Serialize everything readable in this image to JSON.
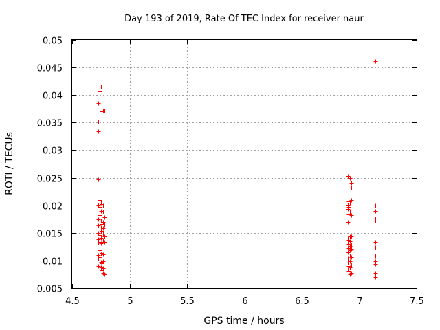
{
  "chart_data": {
    "type": "scatter",
    "title": "Day 193 of 2019, Rate Of TEC Index for receiver naur",
    "xlabel": "GPS time / hours",
    "ylabel": "ROTI / TECUs",
    "xlim": [
      4.5,
      7.5
    ],
    "ylim": [
      0.005,
      0.05
    ],
    "xticks": [
      4.5,
      5,
      5.5,
      6,
      6.5,
      7,
      7.5
    ],
    "xtick_labels": [
      "4.5",
      "5",
      "5.5",
      "6",
      "6.5",
      "7",
      "7.5"
    ],
    "yticks": [
      0.005,
      0.01,
      0.015,
      0.02,
      0.025,
      0.03,
      0.035,
      0.04,
      0.045,
      0.05
    ],
    "ytick_labels": [
      "0.005",
      "0.01",
      "0.015",
      "0.02",
      "0.025",
      "0.03",
      "0.035",
      "0.04",
      "0.045",
      "0.05"
    ],
    "grid": true,
    "marker": "+",
    "series": [
      {
        "name": "ROTI",
        "color": "#ff0000",
        "points": [
          [
            4.73,
            0.0385
          ],
          [
            4.75,
            0.0415
          ],
          [
            4.74,
            0.0407
          ],
          [
            4.76,
            0.037
          ],
          [
            4.77,
            0.0372
          ],
          [
            4.78,
            0.0371
          ],
          [
            4.73,
            0.0352
          ],
          [
            4.73,
            0.0334
          ],
          [
            4.73,
            0.0247
          ],
          [
            4.74,
            0.021
          ],
          [
            4.75,
            0.0205
          ],
          [
            4.76,
            0.0202
          ],
          [
            4.73,
            0.0201
          ],
          [
            4.77,
            0.02
          ],
          [
            4.74,
            0.0197
          ],
          [
            4.75,
            0.019
          ],
          [
            4.77,
            0.0188
          ],
          [
            4.76,
            0.0185
          ],
          [
            4.74,
            0.0182
          ],
          [
            4.78,
            0.0178
          ],
          [
            4.73,
            0.0175
          ],
          [
            4.75,
            0.0172
          ],
          [
            4.77,
            0.017
          ],
          [
            4.74,
            0.0168
          ],
          [
            4.76,
            0.0166
          ],
          [
            4.78,
            0.0165
          ],
          [
            4.73,
            0.0163
          ],
          [
            4.75,
            0.016
          ],
          [
            4.77,
            0.0158
          ],
          [
            4.74,
            0.0156
          ],
          [
            4.76,
            0.0154
          ],
          [
            4.75,
            0.0152
          ],
          [
            4.73,
            0.015
          ],
          [
            4.77,
            0.0148
          ],
          [
            4.74,
            0.0146
          ],
          [
            4.76,
            0.0145
          ],
          [
            4.78,
            0.0143
          ],
          [
            4.75,
            0.0141
          ],
          [
            4.73,
            0.0138
          ],
          [
            4.77,
            0.0136
          ],
          [
            4.74,
            0.0134
          ],
          [
            4.76,
            0.0133
          ],
          [
            4.75,
            0.0131
          ],
          [
            4.73,
            0.0132
          ],
          [
            4.78,
            0.0134
          ],
          [
            4.74,
            0.0118
          ],
          [
            4.76,
            0.0114
          ],
          [
            4.75,
            0.0112
          ],
          [
            4.73,
            0.011
          ],
          [
            4.77,
            0.0111
          ],
          [
            4.74,
            0.0106
          ],
          [
            4.73,
            0.0104
          ],
          [
            4.77,
            0.0098
          ],
          [
            4.75,
            0.0097
          ],
          [
            4.76,
            0.0095
          ],
          [
            4.74,
            0.0093
          ],
          [
            4.73,
            0.009
          ],
          [
            4.75,
            0.0088
          ],
          [
            4.77,
            0.0086
          ],
          [
            4.76,
            0.0082
          ],
          [
            4.77,
            0.0077
          ],
          [
            4.78,
            0.0075
          ],
          [
            6.9,
            0.0253
          ],
          [
            6.92,
            0.0249
          ],
          [
            6.93,
            0.0241
          ],
          [
            6.93,
            0.0232
          ],
          [
            6.93,
            0.021
          ],
          [
            6.91,
            0.0207
          ],
          [
            6.92,
            0.0204
          ],
          [
            6.9,
            0.0201
          ],
          [
            6.91,
            0.0197
          ],
          [
            6.9,
            0.0193
          ],
          [
            6.92,
            0.0188
          ],
          [
            6.91,
            0.0183
          ],
          [
            6.93,
            0.0182
          ],
          [
            6.9,
            0.017
          ],
          [
            6.91,
            0.0145
          ],
          [
            6.92,
            0.0143
          ],
          [
            6.93,
            0.0144
          ],
          [
            6.9,
            0.014
          ],
          [
            6.91,
            0.0137
          ],
          [
            6.92,
            0.0135
          ],
          [
            6.9,
            0.0132
          ],
          [
            6.91,
            0.013
          ],
          [
            6.93,
            0.0128
          ],
          [
            6.92,
            0.0126
          ],
          [
            6.9,
            0.0124
          ],
          [
            6.91,
            0.0122
          ],
          [
            6.93,
            0.0121
          ],
          [
            6.92,
            0.0118
          ],
          [
            6.9,
            0.0115
          ],
          [
            6.91,
            0.0112
          ],
          [
            6.92,
            0.0109
          ],
          [
            6.93,
            0.0106
          ],
          [
            6.9,
            0.0103
          ],
          [
            6.91,
            0.01
          ],
          [
            6.92,
            0.0098
          ],
          [
            6.9,
            0.0096
          ],
          [
            6.93,
            0.0093
          ],
          [
            6.91,
            0.009
          ],
          [
            6.92,
            0.0087
          ],
          [
            6.9,
            0.0084
          ],
          [
            6.91,
            0.0081
          ],
          [
            6.93,
            0.0078
          ],
          [
            6.92,
            0.0075
          ],
          [
            7.14,
            0.0461
          ],
          [
            7.14,
            0.0199
          ],
          [
            7.14,
            0.0189
          ],
          [
            7.14,
            0.0176
          ],
          [
            7.14,
            0.0172
          ],
          [
            7.14,
            0.0133
          ],
          [
            7.14,
            0.0124
          ],
          [
            7.14,
            0.0108
          ],
          [
            7.14,
            0.0098
          ],
          [
            7.14,
            0.0094
          ],
          [
            7.14,
            0.0077
          ],
          [
            7.14,
            0.007
          ]
        ]
      }
    ]
  }
}
